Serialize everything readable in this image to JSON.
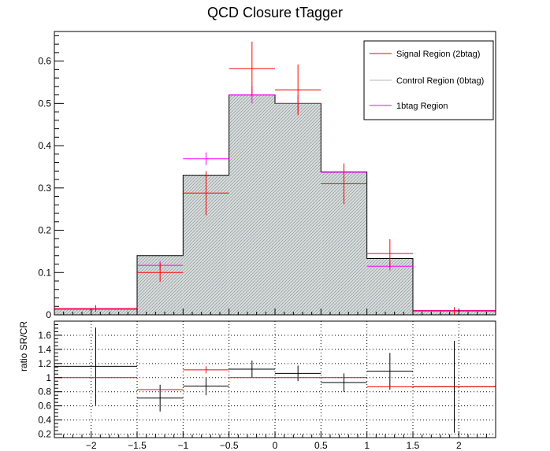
{
  "title": "QCD Closure tTagger",
  "legend": {
    "position": "top-right",
    "entries": [
      {
        "label": "Signal Region (2btag)",
        "color": "#ff0000"
      },
      {
        "label": "Control Region (0btag)",
        "color": "#b4b4b4"
      },
      {
        "label": "1btag Region",
        "color": "#ff00ff"
      }
    ]
  },
  "chart_data": [
    {
      "type": "bar",
      "title": "QCD Closure tTagger",
      "xlim": [
        -2.4,
        2.4
      ],
      "ylim": [
        0,
        0.67
      ],
      "yticks": [
        "0",
        "0.1",
        "0.2",
        "0.3",
        "0.4",
        "0.5",
        "0.6"
      ],
      "bin_edges": [
        -2.4,
        -1.5,
        -1,
        -0.5,
        0,
        0.5,
        1,
        1.5,
        2.4
      ],
      "grid": false,
      "legend": "top-right",
      "series": [
        {
          "name": "Control Region (0btag)",
          "style": "filled-histogram",
          "color": "#b4b4b4",
          "values": [
            0.013,
            0.14,
            0.33,
            0.52,
            0.5,
            0.338,
            0.133,
            0.01
          ]
        },
        {
          "name": "Signal Region (2btag)",
          "style": "crosses",
          "color": "#ff0000",
          "values": [
            0.015,
            0.1,
            0.288,
            0.582,
            0.532,
            0.31,
            0.145,
            0.009
          ],
          "errors": [
            0.008,
            0.022,
            0.052,
            0.064,
            0.06,
            0.048,
            0.034,
            0.009
          ]
        },
        {
          "name": "1btag Region",
          "style": "crosses",
          "color": "#ff00ff",
          "values": [
            0.013,
            0.117,
            0.369,
            0.52,
            0.5,
            0.337,
            0.115,
            0.01
          ],
          "errors": [
            0.003,
            0.01,
            0.015,
            0.02,
            0.02,
            0.015,
            0.01,
            0.003
          ]
        }
      ]
    },
    {
      "type": "line",
      "ylabel": "ratio SR/CR",
      "xlim": [
        -2.4,
        2.4
      ],
      "ylim": [
        0.15,
        1.8
      ],
      "xticks": [
        "−2",
        "−1.5",
        "−1",
        "−0.5",
        "0",
        "0.5",
        "1",
        "1.5",
        "2"
      ],
      "xtick_values": [
        -2,
        -1.5,
        -1,
        -0.5,
        0,
        0.5,
        1,
        1.5,
        2
      ],
      "yticks": [
        "0.2",
        "0.4",
        "0.6",
        "0.8",
        "1",
        "1.2",
        "1.4",
        "1.6"
      ],
      "ytick_values": [
        0.2,
        0.4,
        0.6,
        0.8,
        1,
        1.2,
        1.4,
        1.6
      ],
      "bin_edges": [
        -2.4,
        -1.5,
        -1,
        -0.5,
        0,
        0.5,
        1,
        1.5,
        2.4
      ],
      "grid": true,
      "series": [
        {
          "name": "Signal Region (2btag)",
          "color": "#ff0000",
          "values": [
            1.0,
            0.83,
            1.11,
            1.0,
            1.0,
            1.0,
            0.87,
            0.87
          ],
          "errors": [
            0.0,
            0.0,
            0.05,
            0.0,
            0.0,
            0.0,
            0.0,
            0.0
          ],
          "xerr_bins": [
            -1,
            -1,
            2,
            -1,
            -1,
            -1,
            -1,
            -1
          ]
        },
        {
          "name": "1btag Region",
          "color": "#000000",
          "values": [
            1.16,
            0.71,
            0.88,
            1.12,
            1.06,
            0.93,
            1.09,
            0.87
          ],
          "errors": [
            0.55,
            0.19,
            0.13,
            0.12,
            0.11,
            0.13,
            0.26,
            0.65
          ]
        }
      ]
    }
  ]
}
